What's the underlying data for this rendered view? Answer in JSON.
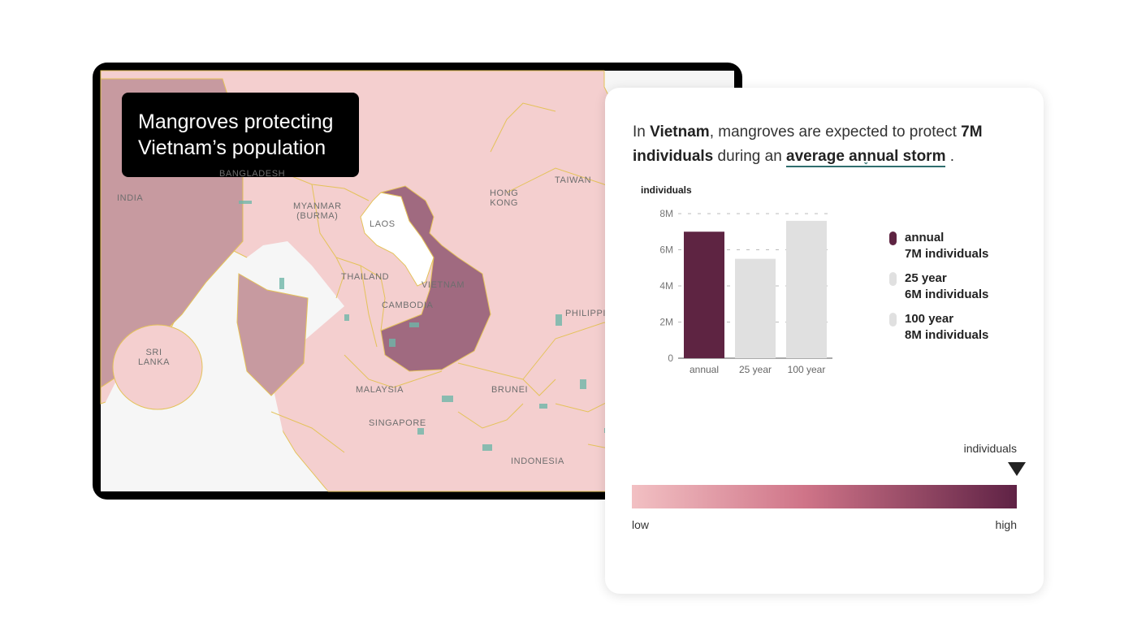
{
  "map": {
    "title_line1": "Mangroves protecting",
    "title_line2": "Vietnam’s population",
    "labels": {
      "india": "INDIA",
      "bangladesh": "BANGLADESH",
      "myanmar": "MYANMAR\n(BURMA)",
      "laos": "LAOS",
      "hong_kong": "HONG\nKONG",
      "taiwan": "TAIWAN",
      "thailand": "THAILAND",
      "vietnam": "VIETNAM",
      "cambodia": "CAMBODIA",
      "philippines": "PHILIPPI",
      "sri_lanka": "SRI\nLANKA",
      "malaysia": "MALAYSIA",
      "brunei": "BRUNEI",
      "singapore": "SINGAPORE",
      "indonesia": "INDONESIA"
    },
    "colors": {
      "selected_country": "#a06a80",
      "neighbor_fill": "#f4cfcf",
      "dark_region": "#c79aa0",
      "highlight_country": "#ffffff",
      "border": "#e4c25a",
      "water": "#f6f6f6"
    }
  },
  "info": {
    "sentence_prefix": "In ",
    "country": "Vietnam",
    "sentence_mid": ", mangroves are expected to protect ",
    "amount": "7M individuals",
    "sentence_during": " during an ",
    "storm_type": "average annual storm",
    "sentence_end": " .",
    "chevron": "⌄"
  },
  "chart_data": {
    "type": "bar",
    "ylabel": "individuals",
    "categories": [
      "annual",
      "25 year",
      "100 year"
    ],
    "values": [
      7,
      5.5,
      7.6
    ],
    "ylim": [
      0,
      8
    ],
    "yticks": [
      0,
      2,
      4,
      6,
      8
    ],
    "ytick_labels": [
      "0",
      "2M",
      "4M",
      "6M",
      "8M"
    ],
    "colors": [
      "#5e2442",
      "#e0e0e0",
      "#e0e0e0"
    ],
    "legend": [
      {
        "name": "annual",
        "value": "7M  individuals",
        "color": "#5e2442"
      },
      {
        "name": "25 year",
        "value": "6M  individuals",
        "color": "#e0e0e0"
      },
      {
        "name": "100 year",
        "value": "8M  individuals",
        "color": "#e0e0e0"
      }
    ],
    "legend_position": "right"
  },
  "scale": {
    "title": "individuals",
    "low": "low",
    "high": "high",
    "marker_fraction": 1.0
  }
}
